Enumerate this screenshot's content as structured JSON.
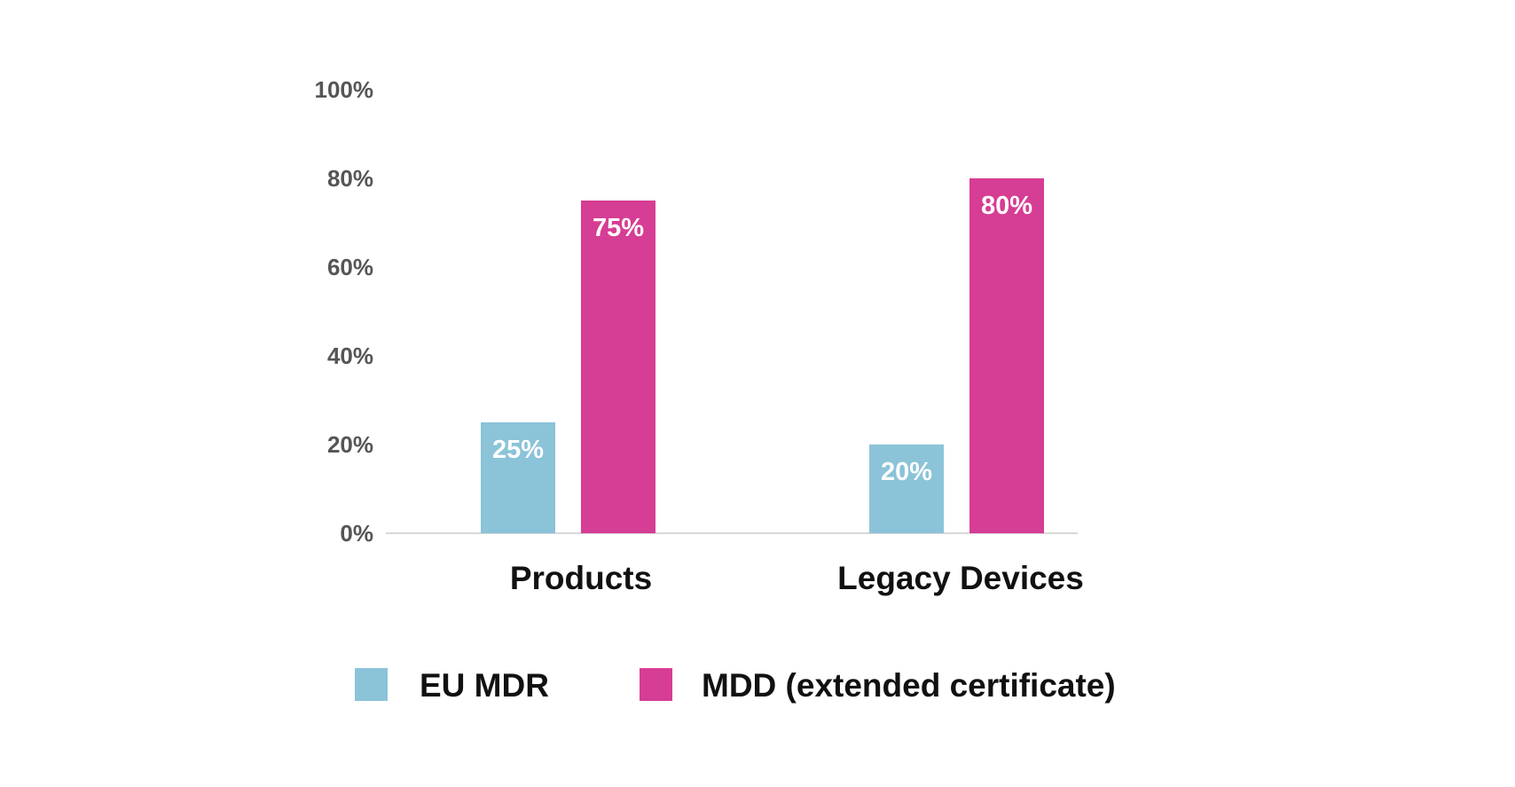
{
  "chart_data": {
    "type": "bar",
    "categories": [
      "Products",
      "Legacy Devices"
    ],
    "series": [
      {
        "name": "EU MDR",
        "values": [
          25,
          20
        ],
        "color": "#8bc3d9",
        "data_labels": [
          "25%",
          "20%"
        ]
      },
      {
        "name": "MDD (extended certificate)",
        "values": [
          75,
          80
        ],
        "color": "#d63d94",
        "data_labels": [
          "75%",
          "80%"
        ]
      }
    ],
    "y_ticks": [
      {
        "value": 0,
        "label": "0%"
      },
      {
        "value": 20,
        "label": "20%"
      },
      {
        "value": 40,
        "label": "40%"
      },
      {
        "value": 60,
        "label": "60%"
      },
      {
        "value": 80,
        "label": "80%"
      },
      {
        "value": 100,
        "label": "100%"
      }
    ],
    "ylim": [
      0,
      100
    ],
    "unit": "%",
    "grid": false,
    "legend_position": "bottom"
  }
}
